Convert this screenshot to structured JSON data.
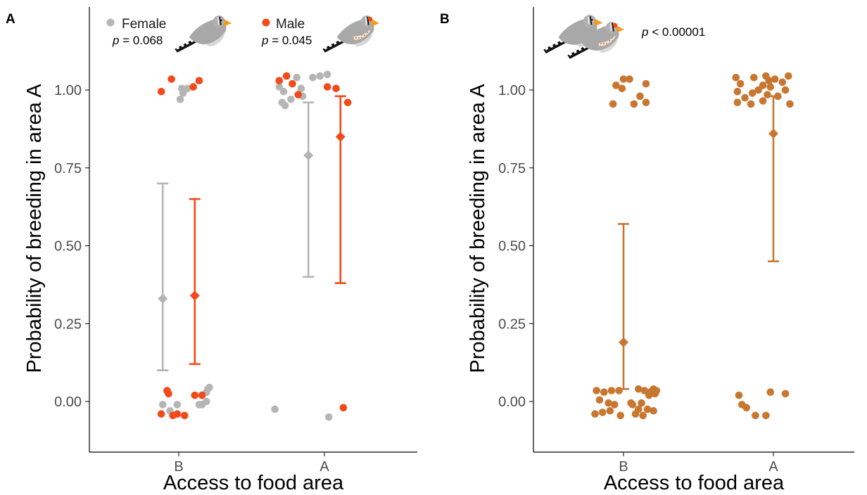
{
  "colors": {
    "female": "#b5b5b5",
    "male": "#f24a1a",
    "combined": "#c87731"
  },
  "chart_data": [
    {
      "type": "scatter",
      "panel_label": "A",
      "xlabel": "Access to food area",
      "ylabel": "Probability of breeding in area A",
      "categories": [
        "B",
        "A"
      ],
      "ylim": [
        -0.17,
        1.27
      ],
      "y_ticks": [
        0.0,
        0.25,
        0.5,
        0.75,
        1.0
      ],
      "y_tick_labels": [
        "0.00",
        "0.25",
        "0.50",
        "0.75",
        "1.00"
      ],
      "grid": false,
      "legend_position": "top",
      "series": [
        {
          "name": "Female",
          "p_value": {
            "symbol": "p",
            "text": " = 0.068"
          },
          "icon": "female-zebra-finch-icon",
          "color_key": "female",
          "points": [
            {
              "category": "B",
              "y": 1.005,
              "jitter": 0.02
            },
            {
              "category": "B",
              "y": 0.99,
              "jitter": 0.03
            },
            {
              "category": "B",
              "y": 0.97,
              "jitter": 0.01
            },
            {
              "category": "B",
              "y": 1.005,
              "jitter": 0.06
            },
            {
              "category": "B",
              "y": -0.01,
              "jitter": -0.11
            },
            {
              "category": "B",
              "y": -0.03,
              "jitter": -0.06
            },
            {
              "category": "B",
              "y": -0.01,
              "jitter": -0.01
            },
            {
              "category": "B",
              "y": -0.01,
              "jitter": 0.14
            },
            {
              "category": "B",
              "y": -0.01,
              "jitter": 0.16
            },
            {
              "category": "B",
              "y": 0.03,
              "jitter": 0.19
            },
            {
              "category": "B",
              "y": 0.04,
              "jitter": 0.2
            },
            {
              "category": "B",
              "y": 0.045,
              "jitter": 0.21
            },
            {
              "category": "B",
              "y": 0.0,
              "jitter": 0.19
            },
            {
              "category": "A",
              "y": 1.01,
              "jitter": -0.31
            },
            {
              "category": "A",
              "y": 0.995,
              "jitter": -0.28
            },
            {
              "category": "A",
              "y": 0.96,
              "jitter": -0.29
            },
            {
              "category": "A",
              "y": 0.95,
              "jitter": -0.27
            },
            {
              "category": "A",
              "y": 0.97,
              "jitter": -0.23
            },
            {
              "category": "A",
              "y": 1.04,
              "jitter": -0.19
            },
            {
              "category": "A",
              "y": 1.04,
              "jitter": -0.08
            },
            {
              "category": "A",
              "y": 1.045,
              "jitter": -0.03
            },
            {
              "category": "A",
              "y": 1.05,
              "jitter": 0.02
            },
            {
              "category": "A",
              "y": 1.005,
              "jitter": -0.16
            },
            {
              "category": "A",
              "y": 0.98,
              "jitter": -0.15
            },
            {
              "category": "A",
              "y": -0.025,
              "jitter": -0.34
            },
            {
              "category": "A",
              "y": -0.05,
              "jitter": 0.03
            }
          ],
          "summary": [
            {
              "category": "B",
              "offset": -0.11,
              "mean": 0.33,
              "lower": 0.1,
              "upper": 0.7
            },
            {
              "category": "A",
              "offset": -0.11,
              "mean": 0.79,
              "lower": 0.4,
              "upper": 0.96
            }
          ]
        },
        {
          "name": "Male",
          "p_value": {
            "symbol": "p",
            "text": " = 0.045"
          },
          "icon": "male-zebra-finch-icon",
          "color_key": "male",
          "points": [
            {
              "category": "B",
              "y": 0.995,
              "jitter": -0.12
            },
            {
              "category": "B",
              "y": 1.035,
              "jitter": -0.05
            },
            {
              "category": "B",
              "y": 1.01,
              "jitter": 0.1
            },
            {
              "category": "B",
              "y": 1.03,
              "jitter": 0.14
            },
            {
              "category": "B",
              "y": 0.035,
              "jitter": -0.08
            },
            {
              "category": "B",
              "y": 0.025,
              "jitter": -0.07
            },
            {
              "category": "B",
              "y": -0.04,
              "jitter": -0.12
            },
            {
              "category": "B",
              "y": -0.045,
              "jitter": -0.04
            },
            {
              "category": "B",
              "y": -0.04,
              "jitter": -0.01
            },
            {
              "category": "B",
              "y": -0.045,
              "jitter": 0.04
            },
            {
              "category": "B",
              "y": 0.02,
              "jitter": 0.11
            },
            {
              "category": "B",
              "y": 0.02,
              "jitter": 0.16
            },
            {
              "category": "A",
              "y": 1.03,
              "jitter": -0.31
            },
            {
              "category": "A",
              "y": 1.045,
              "jitter": -0.26
            },
            {
              "category": "A",
              "y": 1.02,
              "jitter": -0.22
            },
            {
              "category": "A",
              "y": 0.985,
              "jitter": -0.18
            },
            {
              "category": "A",
              "y": 1.01,
              "jitter": 0.02
            },
            {
              "category": "A",
              "y": 1.005,
              "jitter": 0.08
            },
            {
              "category": "A",
              "y": 0.96,
              "jitter": 0.16
            },
            {
              "category": "A",
              "y": -0.02,
              "jitter": 0.13
            }
          ],
          "summary": [
            {
              "category": "B",
              "offset": 0.11,
              "mean": 0.34,
              "lower": 0.12,
              "upper": 0.65
            },
            {
              "category": "A",
              "offset": 0.11,
              "mean": 0.85,
              "lower": 0.38,
              "upper": 0.98
            }
          ]
        }
      ]
    },
    {
      "type": "scatter",
      "panel_label": "B",
      "xlabel": "Access to food area",
      "ylabel": "Probability of breeding in area A",
      "categories": [
        "B",
        "A"
      ],
      "ylim": [
        -0.17,
        1.27
      ],
      "y_ticks": [
        0.0,
        0.25,
        0.5,
        0.75,
        1.0
      ],
      "y_tick_labels": [
        "0.00",
        "0.25",
        "0.50",
        "0.75",
        "1.00"
      ],
      "grid": false,
      "annotation": {
        "symbol": "p",
        "text": " < 0.00001"
      },
      "icon": "pair-zebra-finch-icon",
      "series": [
        {
          "color_key": "combined",
          "points": [
            {
              "category": "B",
              "y": 1.035,
              "jitter": 0.0
            },
            {
              "category": "B",
              "y": 1.035,
              "jitter": 0.04
            },
            {
              "category": "B",
              "y": 1.015,
              "jitter": -0.05
            },
            {
              "category": "B",
              "y": 1.005,
              "jitter": -0.01
            },
            {
              "category": "B",
              "y": 1.02,
              "jitter": 0.15
            },
            {
              "category": "B",
              "y": 0.98,
              "jitter": 0.11
            },
            {
              "category": "B",
              "y": 0.955,
              "jitter": -0.07
            },
            {
              "category": "B",
              "y": 0.955,
              "jitter": 0.07
            },
            {
              "category": "B",
              "y": 0.96,
              "jitter": 0.15
            },
            {
              "category": "B",
              "y": 0.035,
              "jitter": -0.18
            },
            {
              "category": "B",
              "y": 0.03,
              "jitter": -0.13
            },
            {
              "category": "B",
              "y": 0.035,
              "jitter": -0.08
            },
            {
              "category": "B",
              "y": 0.035,
              "jitter": -0.03
            },
            {
              "category": "B",
              "y": 0.04,
              "jitter": 0.1
            },
            {
              "category": "B",
              "y": 0.035,
              "jitter": 0.14
            },
            {
              "category": "B",
              "y": 0.03,
              "jitter": 0.18
            },
            {
              "category": "B",
              "y": 0.035,
              "jitter": 0.22
            },
            {
              "category": "B",
              "y": 0.04,
              "jitter": 0.2
            },
            {
              "category": "B",
              "y": 0.025,
              "jitter": 0.21
            },
            {
              "category": "B",
              "y": 0.02,
              "jitter": 0.17
            },
            {
              "category": "B",
              "y": 0.005,
              "jitter": -0.16
            },
            {
              "category": "B",
              "y": -0.005,
              "jitter": -0.1
            },
            {
              "category": "B",
              "y": -0.01,
              "jitter": -0.06
            },
            {
              "category": "B",
              "y": -0.005,
              "jitter": 0.05
            },
            {
              "category": "B",
              "y": -0.005,
              "jitter": 0.12
            },
            {
              "category": "B",
              "y": -0.01,
              "jitter": 0.06
            },
            {
              "category": "B",
              "y": -0.025,
              "jitter": 0.1
            },
            {
              "category": "B",
              "y": -0.03,
              "jitter": 0.2
            },
            {
              "category": "B",
              "y": -0.04,
              "jitter": -0.19
            },
            {
              "category": "B",
              "y": -0.035,
              "jitter": -0.14
            },
            {
              "category": "B",
              "y": -0.045,
              "jitter": -0.02
            },
            {
              "category": "B",
              "y": -0.04,
              "jitter": 0.08
            },
            {
              "category": "B",
              "y": -0.045,
              "jitter": 0.13
            },
            {
              "category": "B",
              "y": -0.025,
              "jitter": 0.16
            },
            {
              "category": "B",
              "y": -0.03,
              "jitter": -0.09
            },
            {
              "category": "A",
              "y": 1.04,
              "jitter": -0.25
            },
            {
              "category": "A",
              "y": 1.04,
              "jitter": -0.13
            },
            {
              "category": "A",
              "y": 1.045,
              "jitter": -0.05
            },
            {
              "category": "A",
              "y": 1.035,
              "jitter": 0.01
            },
            {
              "category": "A",
              "y": 1.045,
              "jitter": 0.1
            },
            {
              "category": "A",
              "y": 1.025,
              "jitter": 0.06
            },
            {
              "category": "A",
              "y": 1.02,
              "jitter": -0.22
            },
            {
              "category": "A",
              "y": 1.015,
              "jitter": -0.07
            },
            {
              "category": "A",
              "y": 1.03,
              "jitter": -0.03
            },
            {
              "category": "A",
              "y": 1.01,
              "jitter": -0.02
            },
            {
              "category": "A",
              "y": 1.0,
              "jitter": 0.08
            },
            {
              "category": "A",
              "y": 0.995,
              "jitter": -0.24
            },
            {
              "category": "A",
              "y": 0.99,
              "jitter": -0.14
            },
            {
              "category": "A",
              "y": 1.0,
              "jitter": -0.1
            },
            {
              "category": "A",
              "y": 0.985,
              "jitter": -0.04
            },
            {
              "category": "A",
              "y": 0.98,
              "jitter": 0.03
            },
            {
              "category": "A",
              "y": 0.975,
              "jitter": -0.19
            },
            {
              "category": "A",
              "y": 0.965,
              "jitter": -0.07
            },
            {
              "category": "A",
              "y": 0.96,
              "jitter": -0.24
            },
            {
              "category": "A",
              "y": 0.955,
              "jitter": -0.15
            },
            {
              "category": "A",
              "y": 0.955,
              "jitter": 0.11
            },
            {
              "category": "A",
              "y": 0.02,
              "jitter": -0.23
            },
            {
              "category": "A",
              "y": 0.03,
              "jitter": -0.02
            },
            {
              "category": "A",
              "y": 0.025,
              "jitter": 0.08
            },
            {
              "category": "A",
              "y": -0.01,
              "jitter": -0.21
            },
            {
              "category": "A",
              "y": -0.02,
              "jitter": -0.18
            },
            {
              "category": "A",
              "y": -0.045,
              "jitter": -0.12
            },
            {
              "category": "A",
              "y": -0.045,
              "jitter": -0.05
            }
          ],
          "summary": [
            {
              "category": "B",
              "offset": 0.0,
              "mean": 0.19,
              "lower": 0.04,
              "upper": 0.57
            },
            {
              "category": "A",
              "offset": 0.0,
              "mean": 0.86,
              "lower": 0.45,
              "upper": 0.98
            }
          ]
        }
      ]
    }
  ]
}
